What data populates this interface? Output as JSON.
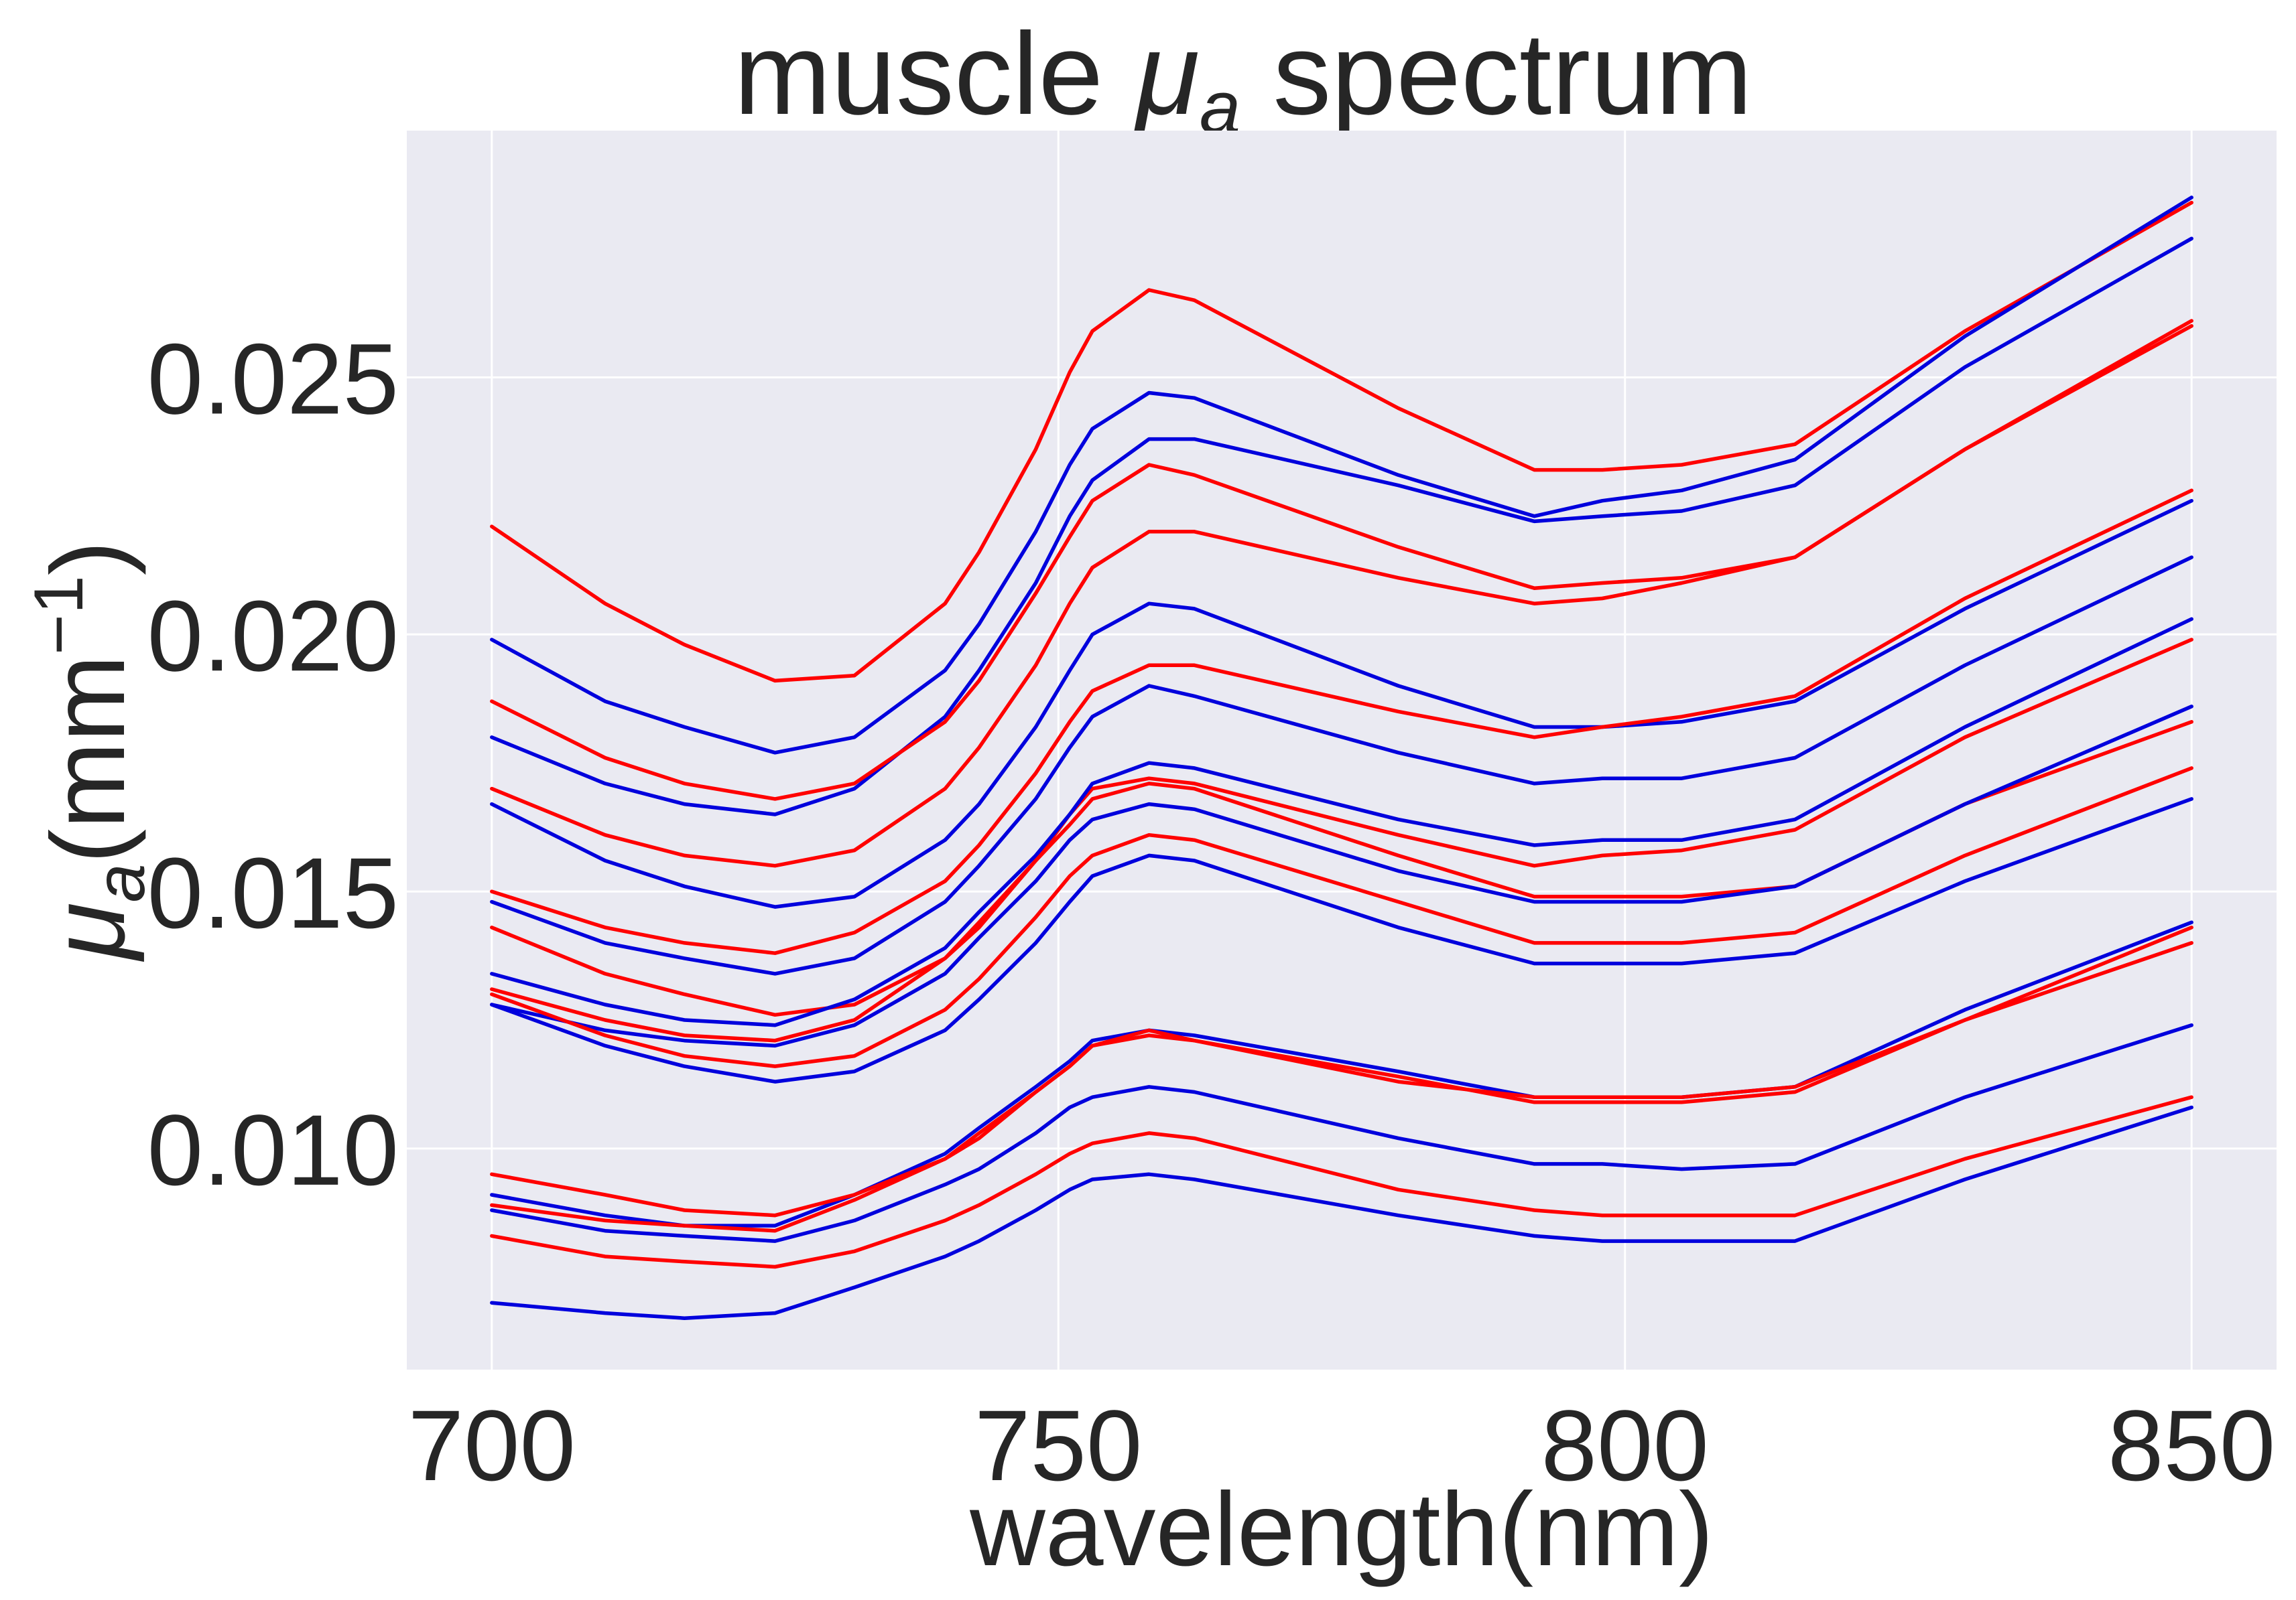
{
  "chart_data": {
    "type": "line",
    "title": {
      "prefix": "muscle ",
      "symbol": "μ",
      "subscript": "a",
      "suffix": " spectrum"
    },
    "xlabel": "wavelength(nm)",
    "ylabel": {
      "symbol": "μ",
      "subscript": "a",
      "open": "(mm",
      "superscript": "−1",
      "close": ")"
    },
    "xlim": [
      692.5,
      857.5
    ],
    "ylim": [
      0.0057,
      0.0298
    ],
    "x_ticks": [
      700,
      750,
      800,
      850
    ],
    "x_tick_labels": [
      "700",
      "750",
      "800",
      "850"
    ],
    "y_ticks": [
      0.01,
      0.015,
      0.02,
      0.025
    ],
    "y_tick_labels": [
      "0.010",
      "0.015",
      "0.020",
      "0.025"
    ],
    "grid": true,
    "colors": {
      "background": "#eaeaf2",
      "grid": "#ffffff",
      "text": "#262626",
      "red": "#ff0000",
      "blue": "#0000dd"
    },
    "x": [
      700,
      710,
      717,
      725,
      732,
      740,
      743,
      748,
      751,
      753,
      758,
      762,
      780,
      792,
      798,
      805,
      815,
      830,
      850
    ],
    "series": [
      {
        "color": "red",
        "values": [
          0.0221,
          0.0206,
          0.0198,
          0.0191,
          0.0192,
          0.0206,
          0.0216,
          0.0236,
          0.0251,
          0.0259,
          0.0267,
          0.0265,
          0.0244,
          0.0232,
          0.0232,
          0.0233,
          0.0237,
          0.0259,
          0.0284
        ]
      },
      {
        "color": "blue",
        "values": [
          0.0199,
          0.0187,
          0.0182,
          0.0177,
          0.018,
          0.0193,
          0.0202,
          0.022,
          0.0233,
          0.024,
          0.0247,
          0.0246,
          0.0231,
          0.0223,
          0.0226,
          0.0228,
          0.0234,
          0.0258,
          0.0285
        ]
      },
      {
        "color": "blue",
        "values": [
          0.018,
          0.0171,
          0.0167,
          0.0165,
          0.017,
          0.0184,
          0.0193,
          0.021,
          0.0223,
          0.023,
          0.0238,
          0.0238,
          0.0229,
          0.0222,
          0.0223,
          0.0224,
          0.0229,
          0.0252,
          0.0277
        ]
      },
      {
        "color": "red",
        "values": [
          0.0187,
          0.0176,
          0.0171,
          0.0168,
          0.0171,
          0.0183,
          0.0191,
          0.0208,
          0.0219,
          0.0226,
          0.0233,
          0.0231,
          0.0217,
          0.0209,
          0.021,
          0.0211,
          0.0215,
          0.0236,
          0.026
        ]
      },
      {
        "color": "red",
        "values": [
          0.017,
          0.0161,
          0.0157,
          0.0155,
          0.0158,
          0.017,
          0.0178,
          0.0194,
          0.0206,
          0.0213,
          0.022,
          0.022,
          0.0211,
          0.0206,
          0.0207,
          0.021,
          0.0215,
          0.0236,
          0.0261
        ]
      },
      {
        "color": "blue",
        "values": [
          0.0167,
          0.0156,
          0.0151,
          0.0147,
          0.0149,
          0.016,
          0.0167,
          0.0182,
          0.0193,
          0.02,
          0.0206,
          0.0205,
          0.019,
          0.0182,
          0.0182,
          0.0183,
          0.0187,
          0.0205,
          0.0226
        ]
      },
      {
        "color": "red",
        "values": [
          0.015,
          0.0143,
          0.014,
          0.0138,
          0.0142,
          0.0152,
          0.0159,
          0.0173,
          0.0183,
          0.0189,
          0.0194,
          0.0194,
          0.0185,
          0.018,
          0.0182,
          0.0184,
          0.0188,
          0.0207,
          0.0228
        ]
      },
      {
        "color": "blue",
        "values": [
          0.0148,
          0.014,
          0.0137,
          0.0134,
          0.0137,
          0.0148,
          0.0155,
          0.0168,
          0.0178,
          0.0184,
          0.019,
          0.0188,
          0.0177,
          0.0171,
          0.0172,
          0.0172,
          0.0176,
          0.0194,
          0.0215
        ]
      },
      {
        "color": "red",
        "values": [
          0.0143,
          0.0134,
          0.013,
          0.0126,
          0.0128,
          0.0137,
          0.0143,
          0.0156,
          0.0165,
          0.017,
          0.0172,
          0.0171,
          0.0161,
          0.0155,
          0.0157,
          0.0158,
          0.0162,
          0.018,
          0.0199
        ]
      },
      {
        "color": "blue",
        "values": [
          0.0134,
          0.0128,
          0.0125,
          0.0124,
          0.0129,
          0.0139,
          0.0146,
          0.0157,
          0.0165,
          0.0171,
          0.0175,
          0.0174,
          0.0164,
          0.0159,
          0.016,
          0.016,
          0.0164,
          0.0182,
          0.0203
        ]
      },
      {
        "color": "red",
        "values": [
          0.0131,
          0.0125,
          0.0122,
          0.0121,
          0.0125,
          0.0137,
          0.0144,
          0.0156,
          0.0163,
          0.0168,
          0.0171,
          0.017,
          0.0157,
          0.0149,
          0.0149,
          0.0149,
          0.0151,
          0.0167,
          0.0183
        ]
      },
      {
        "color": "blue",
        "values": [
          0.0128,
          0.0123,
          0.0121,
          0.012,
          0.0124,
          0.0134,
          0.0141,
          0.0152,
          0.016,
          0.0164,
          0.0167,
          0.0166,
          0.0154,
          0.0148,
          0.0148,
          0.0148,
          0.0151,
          0.0167,
          0.0186
        ]
      },
      {
        "color": "red",
        "values": [
          0.013,
          0.0122,
          0.0118,
          0.0116,
          0.0118,
          0.0127,
          0.0133,
          0.0145,
          0.0153,
          0.0157,
          0.0161,
          0.016,
          0.0148,
          0.014,
          0.014,
          0.014,
          0.0142,
          0.0157,
          0.0174
        ]
      },
      {
        "color": "blue",
        "values": [
          0.0128,
          0.012,
          0.0116,
          0.0113,
          0.0115,
          0.0123,
          0.0129,
          0.014,
          0.0148,
          0.0153,
          0.0157,
          0.0156,
          0.0143,
          0.0136,
          0.0136,
          0.0136,
          0.0138,
          0.0152,
          0.0168
        ]
      },
      {
        "color": "blue",
        "values": [
          0.0091,
          0.0087,
          0.0085,
          0.0085,
          0.0091,
          0.0099,
          0.0104,
          0.0112,
          0.0117,
          0.0121,
          0.0123,
          0.0122,
          0.0115,
          0.011,
          0.011,
          0.011,
          0.0112,
          0.0127,
          0.0144
        ]
      },
      {
        "color": "red",
        "values": [
          0.0089,
          0.0086,
          0.0085,
          0.0084,
          0.009,
          0.0098,
          0.0103,
          0.0111,
          0.0116,
          0.012,
          0.0122,
          0.0121,
          0.0114,
          0.0109,
          0.0109,
          0.0109,
          0.0111,
          0.0125,
          0.0143
        ]
      },
      {
        "color": "red",
        "values": [
          0.0095,
          0.0091,
          0.0088,
          0.0087,
          0.0091,
          0.0098,
          0.0102,
          0.0111,
          0.0116,
          0.012,
          0.0123,
          0.0121,
          0.0113,
          0.011,
          0.011,
          0.011,
          0.0112,
          0.0125,
          0.014
        ]
      },
      {
        "color": "blue",
        "values": [
          0.0088,
          0.0084,
          0.0083,
          0.0082,
          0.0086,
          0.0093,
          0.0096,
          0.0103,
          0.0108,
          0.011,
          0.0112,
          0.0111,
          0.0102,
          0.0097,
          0.0097,
          0.0096,
          0.0097,
          0.011,
          0.0124
        ]
      },
      {
        "color": "red",
        "values": [
          0.0083,
          0.0079,
          0.0078,
          0.0077,
          0.008,
          0.0086,
          0.0089,
          0.0095,
          0.0099,
          0.0101,
          0.0103,
          0.0102,
          0.0092,
          0.0088,
          0.0087,
          0.0087,
          0.0087,
          0.0098,
          0.011
        ]
      },
      {
        "color": "blue",
        "values": [
          0.007,
          0.0068,
          0.0067,
          0.0068,
          0.0073,
          0.0079,
          0.0082,
          0.0088,
          0.0092,
          0.0094,
          0.0095,
          0.0094,
          0.0087,
          0.0083,
          0.0082,
          0.0082,
          0.0082,
          0.0094,
          0.0108
        ]
      }
    ]
  }
}
